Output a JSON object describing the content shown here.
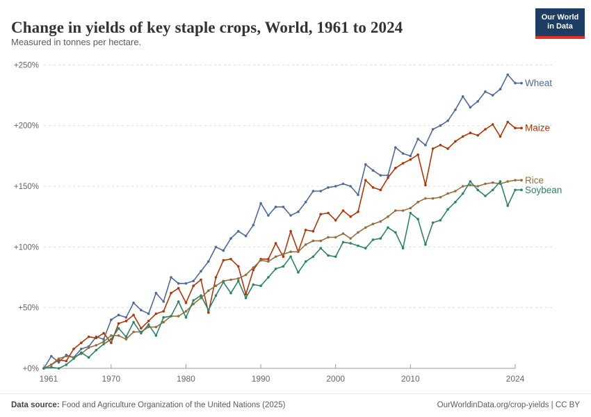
{
  "header": {
    "title": "Change in yields of key staple crops, World, 1961 to 2024",
    "subtitle": "Measured in tonnes per hectare.",
    "logo": {
      "line1": "Our World",
      "line2": "in Data"
    }
  },
  "footer": {
    "source_label": "Data source:",
    "source_text": " Food and Agriculture Organization of the United Nations (2025)",
    "link_text": "OurWorldinData.org/crop-yields | CC BY"
  },
  "colors": {
    "wheat": "#4C6A9C",
    "maize": "#B13507",
    "rice": "#996D39",
    "soybean": "#2C8465",
    "gridline": "#dcdcdc",
    "axis_line": "#9a9a9a",
    "tick_label": "#666666",
    "logo_bg": "#1d3d63",
    "logo_stripe": "#e5322a"
  },
  "chart_data": {
    "type": "line",
    "title": "Change in yields of key staple crops, World, 1961 to 2024",
    "subtitle": "Measured in tonnes per hectare.",
    "unit": "% change since 1961",
    "grid": "horizontal-dashed",
    "legend_position": "end-of-line-labels",
    "xlim": [
      1961,
      2024
    ],
    "ylim": [
      0,
      250
    ],
    "x": [
      1961,
      1962,
      1963,
      1964,
      1965,
      1966,
      1967,
      1968,
      1969,
      1970,
      1971,
      1972,
      1973,
      1974,
      1975,
      1976,
      1977,
      1978,
      1979,
      1980,
      1981,
      1982,
      1983,
      1984,
      1985,
      1986,
      1987,
      1988,
      1989,
      1990,
      1991,
      1992,
      1993,
      1994,
      1995,
      1996,
      1997,
      1998,
      1999,
      2000,
      2001,
      2002,
      2003,
      2004,
      2005,
      2006,
      2007,
      2008,
      2009,
      2010,
      2011,
      2012,
      2013,
      2014,
      2015,
      2016,
      2017,
      2018,
      2019,
      2020,
      2021,
      2022,
      2023,
      2024
    ],
    "x_ticks": [
      {
        "year": 1961,
        "label": "1961"
      },
      {
        "year": 1970,
        "label": "1970"
      },
      {
        "year": 1980,
        "label": "1980"
      },
      {
        "year": 1990,
        "label": "1990"
      },
      {
        "year": 2000,
        "label": "2000"
      },
      {
        "year": 2010,
        "label": "2010"
      },
      {
        "year": 2024,
        "label": "2024"
      }
    ],
    "y_ticks": [
      {
        "value": 0,
        "label": "+0%"
      },
      {
        "value": 50,
        "label": "+50%"
      },
      {
        "value": 100,
        "label": "+100%"
      },
      {
        "value": 150,
        "label": "+150%"
      },
      {
        "value": 200,
        "label": "+200%"
      },
      {
        "value": 250,
        "label": "+250%"
      }
    ],
    "series": [
      {
        "name": "Wheat",
        "color": "#4C6A9C",
        "values": [
          0,
          10,
          5,
          11,
          9,
          16,
          18,
          26,
          24,
          40,
          44,
          42,
          54,
          48,
          45,
          62,
          55,
          75,
          70,
          70,
          72,
          80,
          88,
          100,
          97,
          107,
          113,
          109,
          118,
          136,
          126,
          133,
          133,
          126,
          129,
          137,
          146,
          146,
          149,
          150,
          152,
          150,
          143,
          168,
          163,
          159,
          159,
          182,
          177,
          175,
          189,
          184,
          197,
          200,
          204,
          213,
          224,
          215,
          220,
          228,
          225,
          230,
          242,
          235
        ]
      },
      {
        "name": "Maize",
        "color": "#B13507",
        "values": [
          0,
          3,
          7,
          6,
          16,
          21,
          26,
          25,
          29,
          21,
          37,
          39,
          44,
          33,
          39,
          45,
          47,
          62,
          66,
          54,
          68,
          73,
          46,
          75,
          89,
          90,
          84,
          61,
          81,
          90,
          90,
          103,
          92,
          113,
          96,
          114,
          113,
          127,
          128,
          122,
          130,
          125,
          129,
          155,
          149,
          147,
          157,
          165,
          169,
          172,
          176,
          151,
          181,
          184,
          181,
          187,
          191,
          194,
          192,
          197,
          201,
          191,
          203,
          198
        ]
      },
      {
        "name": "Rice",
        "color": "#996D39",
        "values": [
          0,
          3,
          8,
          10,
          9,
          12,
          17,
          19,
          22,
          27,
          27,
          24,
          30,
          30,
          34,
          34,
          38,
          43,
          43,
          47,
          53,
          58,
          64,
          68,
          72,
          73,
          74,
          77,
          83,
          89,
          88,
          92,
          94,
          96,
          96,
          102,
          105,
          105,
          108,
          108,
          111,
          107,
          112,
          116,
          119,
          121,
          125,
          130,
          130,
          132,
          137,
          140,
          140,
          141,
          144,
          146,
          150,
          151,
          150,
          152,
          153,
          152,
          154,
          155
        ]
      },
      {
        "name": "Soybean",
        "color": "#2C8465",
        "values": [
          0,
          1,
          0,
          3,
          8,
          13,
          9,
          15,
          20,
          24,
          33,
          26,
          38,
          29,
          36,
          27,
          42,
          43,
          55,
          42,
          56,
          60,
          48,
          60,
          71,
          62,
          72,
          58,
          69,
          68,
          75,
          82,
          84,
          92,
          79,
          88,
          92,
          99,
          93,
          92,
          104,
          103,
          101,
          99,
          106,
          107,
          116,
          112,
          99,
          128,
          123,
          102,
          120,
          122,
          131,
          137,
          144,
          154,
          147,
          142,
          147,
          154,
          134,
          147
        ]
      }
    ]
  }
}
